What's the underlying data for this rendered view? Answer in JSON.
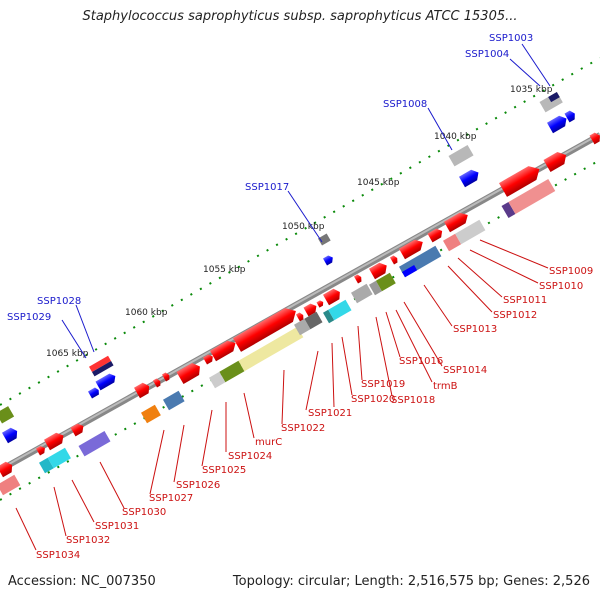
{
  "header": {
    "title": "Staphylococcus saprophyticus subsp. saprophyticus ATCC 15305..."
  },
  "footer": {
    "accession": "Accession: NC_007350",
    "summary": "Topology: circular; Length: 2,516,575 bp; Genes: 2,526"
  },
  "map": {
    "kbp_ticks": [
      "1035 kbp",
      "1040 kbp",
      "1045 kbp",
      "1050 kbp",
      "1055 kbp",
      "1060 kbp",
      "1065 kbp"
    ],
    "genes_upper": [
      "SSP1003",
      "SSP1004",
      "SSP1008",
      "SSP1017",
      "SSP1028",
      "SSP1029"
    ],
    "genes_lower": [
      "SSP1009",
      "SSP1010",
      "SSP1011",
      "SSP1012",
      "SSP1013",
      "SSP1014",
      "trmB",
      "SSP1016",
      "SSP1018",
      "SSP1019",
      "SSP1020",
      "SSP1021",
      "SSP1022",
      "murC",
      "SSP1024",
      "SSP1025",
      "SSP1026",
      "SSP1027",
      "SSP1030",
      "SSP1031",
      "SSP1032",
      "SSP1034"
    ],
    "colors": {
      "forward": "#ff0000",
      "reverse": "#0000ff",
      "backbone": "#777777",
      "label_upper": "#1a1acc",
      "label_lower": "#cc1111"
    }
  }
}
